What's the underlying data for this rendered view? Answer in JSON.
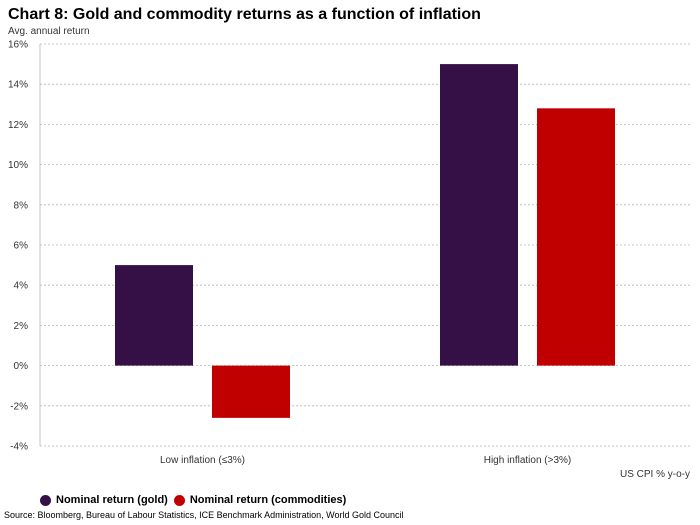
{
  "title": "Chart 8: Gold and commodity returns as a function of inflation",
  "source": "Source: Bloomberg, Bureau of Labour Statistics, ICE Benchmark Administration, World Gold Council",
  "chart_data": {
    "type": "bar",
    "title": "Chart 8: Gold and commodity returns as a function of inflation",
    "ylabel": "Avg. annual return",
    "xlabel": "US CPI % y-o-y",
    "categories": [
      "Low inflation (≤3%)",
      "High inflation (>3%)"
    ],
    "series": [
      {
        "name": "Nominal return (gold)",
        "color": "#351046",
        "values": [
          5.0,
          15.0
        ]
      },
      {
        "name": "Nominal return (commodities)",
        "color": "#c00000",
        "values": [
          -2.6,
          12.8
        ]
      }
    ],
    "ylim": [
      -4,
      16
    ],
    "yticks": [
      -4,
      -2,
      0,
      2,
      4,
      6,
      8,
      10,
      12,
      14,
      16
    ],
    "ytick_format": "percent",
    "grid": true,
    "legend_position": "bottom-left"
  }
}
